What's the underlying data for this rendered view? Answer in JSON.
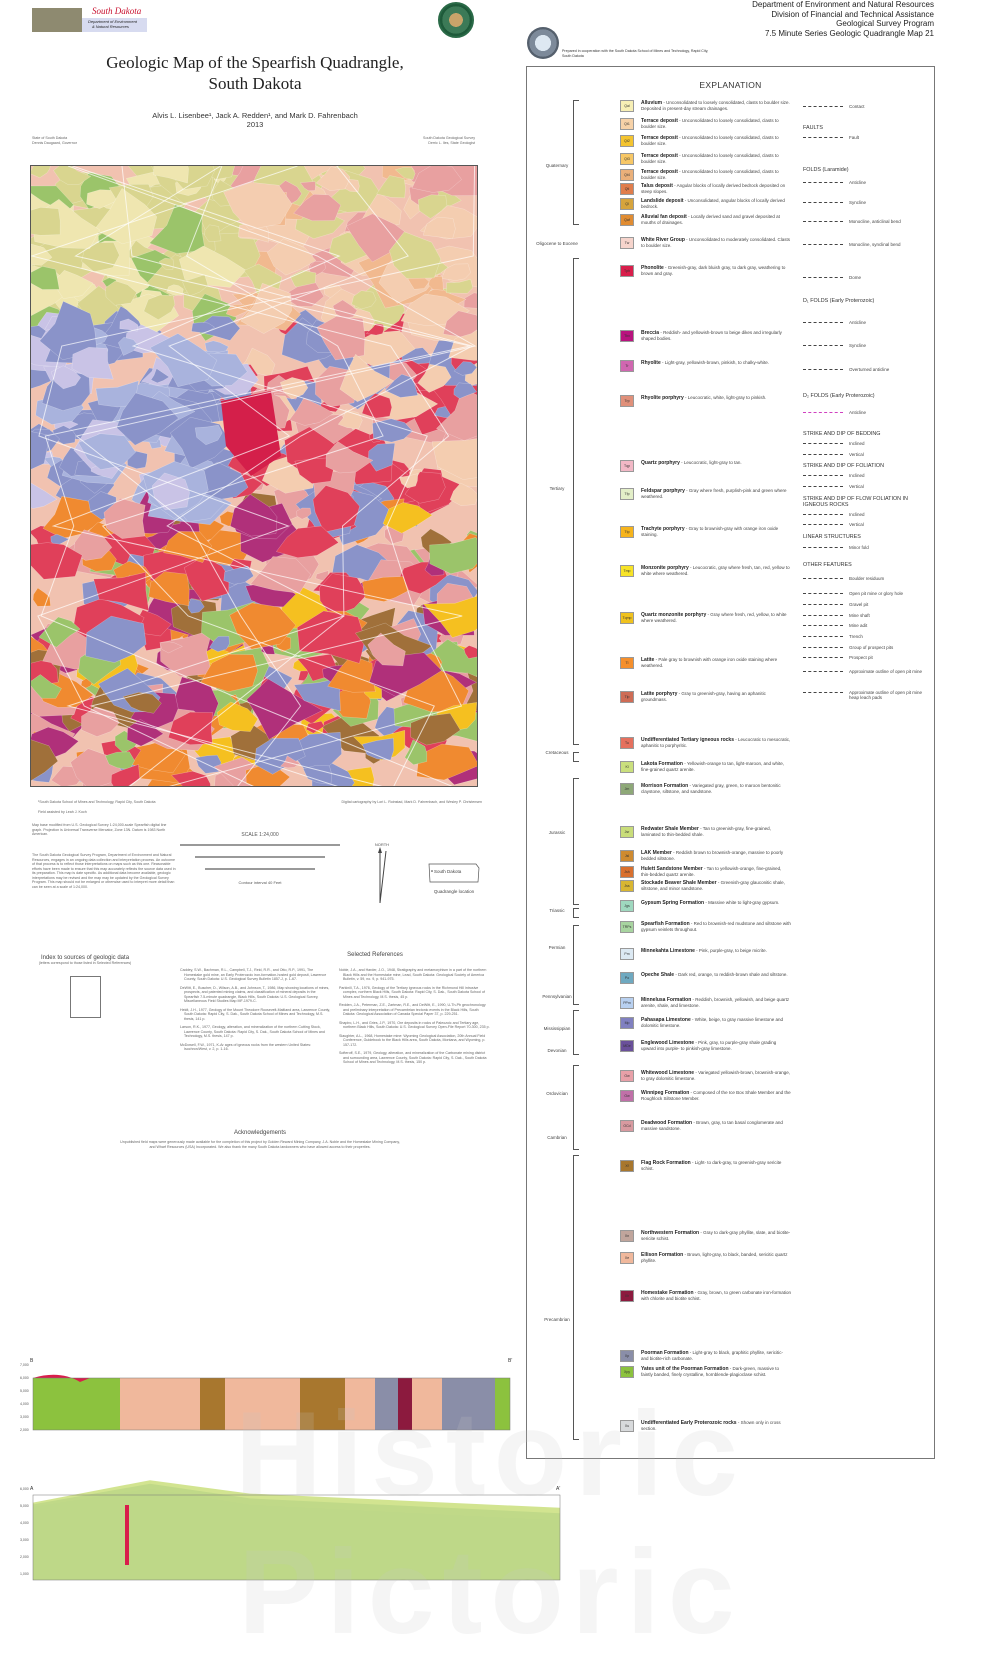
{
  "header": {
    "logo_text": [
      "South Dakota",
      "Department of Environment & Natural Resources",
      "Geological Survey"
    ],
    "title_line1": "Geologic Map of the Spearfish Quadrangle,",
    "title_line2": "South Dakota",
    "authors": "Alvis L. Lisenbee¹, Jack A. Redden¹, and Mark D. Fahrenbach",
    "year": "2013",
    "state_left": "State of South Dakota",
    "governor": "Dennis Daugaard, Governor",
    "survey_right": "South Dakota Geological Survey",
    "state_geologist": "Derric L. Iles, State Geologist",
    "agency_lines": [
      "Department of Environment and Natural Resources",
      "Division of Financial and Technical Assistance",
      "Geological Survey Program",
      "7.5 Minute Series Geologic Quadrangle Map 21"
    ],
    "cooperation": "Prepared in cooperation with the South Dakota School of Mines and Technology, Rapid City, South Dakota"
  },
  "map": {
    "footnote": "¹South Dakota School of Mines and Technology, Rapid City, South Dakota",
    "field_assist": "Field assisted by Leah J. Koch",
    "cartography": "Digital cartography by Lori L. Roinstad, Mark D. Fahrenbach, and Wesley P. Christensen",
    "base_note": "Map base modified from U.S. Geological Survey 1:24,000-scale Spearfish digital line graph. Projection is Universal Transverse Mercator, Zone 13N. Datum is 1983 North American.",
    "disclaimer": "The South Dakota Geological Survey Program, Department of Environment and Natural Resources, engages in an ongoing data collection and interpretation process. An outcome of that process is to reflect those interpretations on maps such as this one. Reasonable efforts have been made to ensure that this map accurately reflects the source data used in its preparation. This map is date specific. As additional data become available, geologic interpretations may be revised and the map may be updated by the Geological Survey Program. This map should not be enlarged or otherwise used to interpret more detail than can be seen at a scale of 1:24,000.",
    "scale": "SCALE 1:24,000",
    "contour": "Contour interval 40 Feet",
    "north": "NORTH",
    "locator_state": "South Dakota",
    "locator_caption": "Quadrangle location",
    "colors": [
      "#d9d58f",
      "#efe6b0",
      "#9bc46a",
      "#f4cdb0",
      "#f1b98f",
      "#e8a0a0",
      "#8a93c9",
      "#a9b3dd",
      "#c9c3e6",
      "#f08a30",
      "#f5c020",
      "#e0405a",
      "#a0703a",
      "#b0307a"
    ]
  },
  "index": {
    "title": "Index to sources of geologic data",
    "subtitle": "(letters correspond to those listed in Selected References)"
  },
  "references": {
    "title": "Selected References",
    "items": [
      "Caddey, S.W., Bachman, R.L., Campbell, T.J., Reid, R.R., and Otto, R.P., 1991, The Homestake gold mine, an Early Proterozoic iron-formation-hosted gold deposit, Lawrence County, South Dakota: U.S. Geological Survey Bulletin 1857-J, p. 1-67.",
      "DeWitt, E., Buscher, D., Wilson, A.B., and Johnson, T., 1986, Map showing locations of mines, prospects, and patented mining claims, and classification of mineral deposits in the Spearfish 7.5-minute quadrangle, Black Hills, South Dakota: U.S. Geological Survey, Miscellaneous Field Studies Map MF-1979-C.",
      "Heidt, J.H., 1977, Geology of the Mount Theodore Roosevelt-Maitland area, Lawrence County, South Dakota: Rapid City, S. Dak., South Dakota School of Mines and Technology, M.S. thesis, 141 p.",
      "Larson, R.K., 1977, Geology, alteration, and mineralization of the northern Cutting Stock, Lawrence County, South Dakota: Rapid City, S. Dak., South Dakota School of Mines and Technology, M.S. thesis, 147 p.",
      "McDowell, F.W., 1971, K-Ar ages of igneous rocks from the western United States: Isochron/West, v. 2, p. 1-16.",
      "Noble, J.A., and Harder, J.O., 1948, Stratigraphy and metamorphism in a part of the northern Black Hills and the Homestake mine, Lead, South Dakota: Geological Society of America Bulletin, v. 59, no. 9, p. 941-975.",
      "Parkinill, T.A., 1976, Geology of the Tertiary igneous rocks in the Richmond Hill intrusive complex, northern Black Hills, South Dakota: Rapid City, S. Dak., South Dakota School of Mines and Technology, M.S. thesis, 45 p.",
      "Redden, J.A., Peterman, Z.E., Zartman, R.E., and DeWitt, E., 1990, U-Th-Pb geochronology and preliminary interpretation of Precambrian tectonic events in the Black Hills, South Dakota: Geological Association of Canada Special Paper 37, p. 229-251.",
      "Shapiro, L.H., and Gries, J.P., 1970, Ore deposits in rocks of Paleozoic and Tertiary age, northern Black Hills, South Dakota: U.S. Geological Survey Open-File Report 70-300, 235 p.",
      "Slaughter, A.L., 1968, Homestake mine: Wyoming Geological Association, 20th Annual Field Conference, Guidebook to the Black Hills area, South Dakota, Montana, and Wyoming, p. 157-172.",
      "Softeroff, S.E., 1979, Geology, alteration, and mineralization of the Carbonate mining district and surrounding area, Lawrence County, South Dakota: Rapid City, S. Dak., South Dakota School of Mines and Technology, M.S. thesis, 150 p."
    ]
  },
  "acknowledgements": {
    "title": "Acknowledgements",
    "text": "Unpublished field maps were generously made available for the completion of this project by Golden Reward Mining Company, J.A. Noble and the Homestake Mining Company, and Wharf Resources (USA) Incorporated. We also thank the many South Dakota landowners who have allowed access to their properties."
  },
  "explanation": {
    "title": "EXPLANATION",
    "periods": [
      "Quaternary",
      "Oligocene to Eocene",
      "Tertiary",
      "Cretaceous",
      "Jurassic",
      "Triassic",
      "Permian",
      "Pennsylvanian",
      "Mississippian",
      "Devonian",
      "Ordovician",
      "Cambrian",
      "Precambrian"
    ],
    "units": [
      {
        "sym": "Qal",
        "name": "Alluvium",
        "desc": "Unconsolidated to loosely consolidated, clasts to boulder size. Deposited in present-day stream drainages.",
        "color": "#f7efb5"
      },
      {
        "sym": "Qt1",
        "name": "Terrace deposit",
        "desc": "Unconsolidated to loosely consolidated, clasts to boulder size.",
        "color": "#f7d2a8"
      },
      {
        "sym": "Qt2",
        "name": "Terrace deposit",
        "desc": "Unconsolidated to loosely consolidated, clasts to boulder size.",
        "color": "#f4c430"
      },
      {
        "sym": "Qt3",
        "name": "Terrace deposit",
        "desc": "Unconsolidated to loosely consolidated, clasts to boulder size.",
        "color": "#f7c766"
      },
      {
        "sym": "Qt4",
        "name": "Terrace deposit",
        "desc": "Unconsolidated to loosely consolidated, clasts to boulder size.",
        "color": "#eab07a"
      },
      {
        "sym": "Qtl",
        "name": "Talus deposit",
        "desc": "Angular blocks of locally derived bedrock deposited on steep slopes.",
        "color": "#e07d4c"
      },
      {
        "sym": "Ql",
        "name": "Landslide deposit",
        "desc": "Unconsolidated, angular blocks of locally derived bedrock.",
        "color": "#d6a43d"
      },
      {
        "sym": "Qaf",
        "name": "Alluvial fan deposit",
        "desc": "Locally derived sand and gravel deposited at mouths of drainages.",
        "color": "#e08c32"
      },
      {
        "sym": "Tw",
        "name": "White River Group",
        "desc": "Unconsolidated to moderately consolidated. Clasts to boulder size.",
        "color": "#f6d4cc"
      },
      {
        "sym": "Tph",
        "name": "Phonolite",
        "desc": "Greenish-gray, dark bluish gray, to dark gray, weathering to brown and gray.",
        "color": "#d81e4b"
      },
      {
        "sym": "Tbx",
        "name": "Breccia",
        "desc": "Reddish- and yellowish-brown to beige dikes and irregularly shaped bodies.",
        "color": "#b8137e"
      },
      {
        "sym": "Tr",
        "name": "Rhyolite",
        "desc": "Light-gray, yellowish-brown, pinkish, to chalky-white.",
        "color": "#d067b0"
      },
      {
        "sym": "Trp",
        "name": "Rhyolite porphyry",
        "desc": "Leucocratic, white, light-gray to pinkish.",
        "color": "#e0907a"
      },
      {
        "sym": "Tqp",
        "name": "Quartz porphyry",
        "desc": "Leucocratic, light-gray to tan.",
        "color": "#f2b8c6"
      },
      {
        "sym": "Tfp",
        "name": "Feldspar porphyry",
        "desc": "Gray where fresh, purplish-pink and green where weathered.",
        "color": "#e3efc8"
      },
      {
        "sym": "Ttp",
        "name": "Trachyte porphyry",
        "desc": "Gray to brownish-gray with orange iron oxide staining.",
        "color": "#f6b41c"
      },
      {
        "sym": "Tmp",
        "name": "Monzonite porphyry",
        "desc": "Leucocratic, gray where fresh, tan, red, yellow to white where weathered.",
        "color": "#f7e327"
      },
      {
        "sym": "Tqmp",
        "name": "Quartz monzonite porphyry",
        "desc": "Gray where fresh, red, yellow, to white where weathered.",
        "color": "#f0c21e"
      },
      {
        "sym": "Tl",
        "name": "Latite",
        "desc": "Pale gray to brownish with orange iron oxide staining where weathered.",
        "color": "#f58f2c"
      },
      {
        "sym": "Tlp",
        "name": "Latite porphyry",
        "desc": "Gray to greenish-gray, having an aphanitic groundmass.",
        "color": "#ce6c55"
      },
      {
        "sym": "Tu",
        "name": "Undifferentiated Tertiary igneous rocks",
        "desc": "Leucocratic to mesocratic, aphanitic to porphyritic.",
        "color": "#e5705e"
      },
      {
        "sym": "Kl",
        "name": "Lakota Formation",
        "desc": "Yellowish-orange to tan, light-maroon, and white, fine-grained quartz arenite.",
        "color": "#cadf7d"
      },
      {
        "sym": "Jm",
        "name": "Morrison Formation",
        "desc": "Variegated gray, green, to maroon bentonitic claystone, siltstone, and sandstone.",
        "color": "#8ea878"
      },
      {
        "sym": "Jsr",
        "name": "Redwater Shale Member",
        "desc": "Tan to greenish-gray, fine-grained, laminated to thin-bedded shale.",
        "color": "#c9dd7a"
      },
      {
        "sym": "Jsl",
        "name": "LAK Member",
        "desc": "Reddish brown to brownish-orange, massive to poorly bedded siltstone.",
        "color": "#cf8b30"
      },
      {
        "sym": "Jsh",
        "name": "Hulett Sandstone Member",
        "desc": "Tan to yellowish-orange, fine-grained, thin-bedded quartz arenite.",
        "color": "#d9702e"
      },
      {
        "sym": "Jss",
        "name": "Stockade Beaver Shale Member",
        "desc": "Greenish-gray glauconitic shale, siltstone, and minor sandstone.",
        "color": "#d8b632"
      },
      {
        "sym": "Jgs",
        "name": "Gypsum Spring Formation",
        "desc": "Massive white to light-gray gypsum.",
        "color": "#9fd8bf"
      },
      {
        "sym": "TRPs",
        "name": "Spearfish Formation",
        "desc": "Red to brownish-red mudstone and siltstone with gypsum veinlets throughout.",
        "color": "#a8d4a0"
      },
      {
        "sym": "Pm",
        "name": "Minnekahta Limestone",
        "desc": "Pink, purple-gray, to beige micrite.",
        "color": "#dce9f3"
      },
      {
        "sym": "Po",
        "name": "Opeche Shale",
        "desc": "Dark red, orange, to reddish-brown shale and siltstone.",
        "color": "#6fa9c0"
      },
      {
        "sym": "PPm",
        "name": "Minnelusa Formation",
        "desc": "Reddish, brownish, yellowish, and beige quartz arenite, shale, and limestone.",
        "color": "#b8d0f0"
      },
      {
        "sym": "Mp",
        "name": "Pahasapa Limestone",
        "desc": "White, beige, to gray massive limestone and dolomitic limestone.",
        "color": "#8080c0"
      },
      {
        "sym": "MDe",
        "name": "Englewood Limestone",
        "desc": "Pink, gray, to purple-gray shale grading upward into purple- to pinkish-gray limestone.",
        "color": "#6a509a"
      },
      {
        "sym": "Ow",
        "name": "Whitewood Limestone",
        "desc": "Variegated yellowish-brown, brownish-orange, to gray dolomitic limestone.",
        "color": "#e8a0a8"
      },
      {
        "sym": "Ow",
        "name": "Winnipeg Formation",
        "desc": "Composed of the Ice Box Shale Member and the Roughlock Siltstone Member.",
        "color": "#c070a8"
      },
      {
        "sym": "OCd",
        "name": "Deadwood Formation",
        "desc": "Brown, gray, to tan basal conglomerate and massive sandstone.",
        "color": "#d89aa0"
      },
      {
        "sym": "Xf",
        "name": "Flag Rock Formation",
        "desc": "Light- to dark-gray, to greenish-gray sericite schist.",
        "color": "#a8772e"
      },
      {
        "sym": "Xn",
        "name": "Northwestern Formation",
        "desc": "Gray to dark-gray phyllite, slate, and biotite-sericite schist.",
        "color": "#c0a59c"
      },
      {
        "sym": "Xe",
        "name": "Ellison Formation",
        "desc": "Brown, light-gray, to black, banded, sericitic quartz phyllite.",
        "color": "#f0b89c"
      },
      {
        "sym": "Xh",
        "name": "Homestake Formation",
        "desc": "Gray, brown, to green carbonate iron-formation with chlorite and biotite schist.",
        "color": "#8c1a3e"
      },
      {
        "sym": "Xp",
        "name": "Poorman Formation",
        "desc": "Light-gray to black, graphitic phyllite, sericitic- and biotite-rich carbonate.",
        "color": "#8a8ea8"
      },
      {
        "sym": "Xpy",
        "name": "Yates unit of the Poorman Formation",
        "desc": "Dark-green, massive to faintly banded, finely crystalline, hornblende-plagioclase schist.",
        "color": "#8cc23e"
      },
      {
        "sym": "Xu",
        "name": "Undifferentiated Early Proterozoic rocks",
        "desc": "Shown only in cross section.",
        "color": "#d8dadc"
      }
    ],
    "symbols": [
      {
        "type": "heading",
        "label": "FAULTS"
      },
      {
        "type": "item",
        "label": "Contact"
      },
      {
        "type": "item",
        "label": "Fault"
      },
      {
        "type": "heading",
        "label": "FOLDS (Laramide)"
      },
      {
        "type": "item",
        "label": "Anticline"
      },
      {
        "type": "item",
        "label": "Syncline"
      },
      {
        "type": "item",
        "label": "Monocline, anticlinal bend"
      },
      {
        "type": "item",
        "label": "Monocline, synclinal bend"
      },
      {
        "type": "item",
        "label": "Dome"
      },
      {
        "type": "heading",
        "label": "D₁ FOLDS (Early Proterozoic)"
      },
      {
        "type": "item",
        "label": "Anticline"
      },
      {
        "type": "item",
        "label": "Syncline"
      },
      {
        "type": "item",
        "label": "Overturned anticline"
      },
      {
        "type": "heading",
        "label": "D₂ FOLDS (Early Proterozoic)"
      },
      {
        "type": "item",
        "label": "Anticline"
      },
      {
        "type": "heading",
        "label": "STRIKE AND DIP OF BEDDING"
      },
      {
        "type": "item",
        "label": "Inclined"
      },
      {
        "type": "item",
        "label": "Vertical"
      },
      {
        "type": "heading",
        "label": "STRIKE AND DIP OF FOLIATION"
      },
      {
        "type": "item",
        "label": "Inclined"
      },
      {
        "type": "item",
        "label": "Vertical"
      },
      {
        "type": "heading",
        "label": "STRIKE AND DIP OF FLOW FOLIATION IN IGNEOUS ROCKS"
      },
      {
        "type": "item",
        "label": "Inclined"
      },
      {
        "type": "item",
        "label": "Vertical"
      },
      {
        "type": "heading",
        "label": "LINEAR STRUCTURES"
      },
      {
        "type": "item",
        "label": "Minor fold"
      },
      {
        "type": "heading",
        "label": "OTHER FEATURES"
      },
      {
        "type": "item",
        "label": "Boulder residuum"
      },
      {
        "type": "item",
        "label": "Open pit mine or glory hole"
      },
      {
        "type": "item",
        "label": "Gravel pit"
      },
      {
        "type": "item",
        "label": "Mine shaft"
      },
      {
        "type": "item",
        "label": "Mine adit"
      },
      {
        "type": "item",
        "label": "Trench"
      },
      {
        "type": "item",
        "label": "Group of prospect pits"
      },
      {
        "type": "item",
        "label": "Prospect pit"
      },
      {
        "type": "item",
        "label": "Approximate outline of open pit mine"
      },
      {
        "type": "item",
        "label": "Approximate outline of open pit mine heap leach pads"
      }
    ]
  },
  "cross_sections": {
    "a_labels": [
      "B",
      "B'"
    ],
    "b_labels": [
      "A",
      "A'"
    ],
    "elev_ticks_a": [
      "7,000",
      "6,000",
      "5,000",
      "4,000",
      "3,000",
      "2,000"
    ],
    "elev_ticks_b": [
      "6,000",
      "5,000",
      "4,000",
      "3,000",
      "2,000",
      "1,000"
    ]
  },
  "watermark": "Historic Pictoric"
}
